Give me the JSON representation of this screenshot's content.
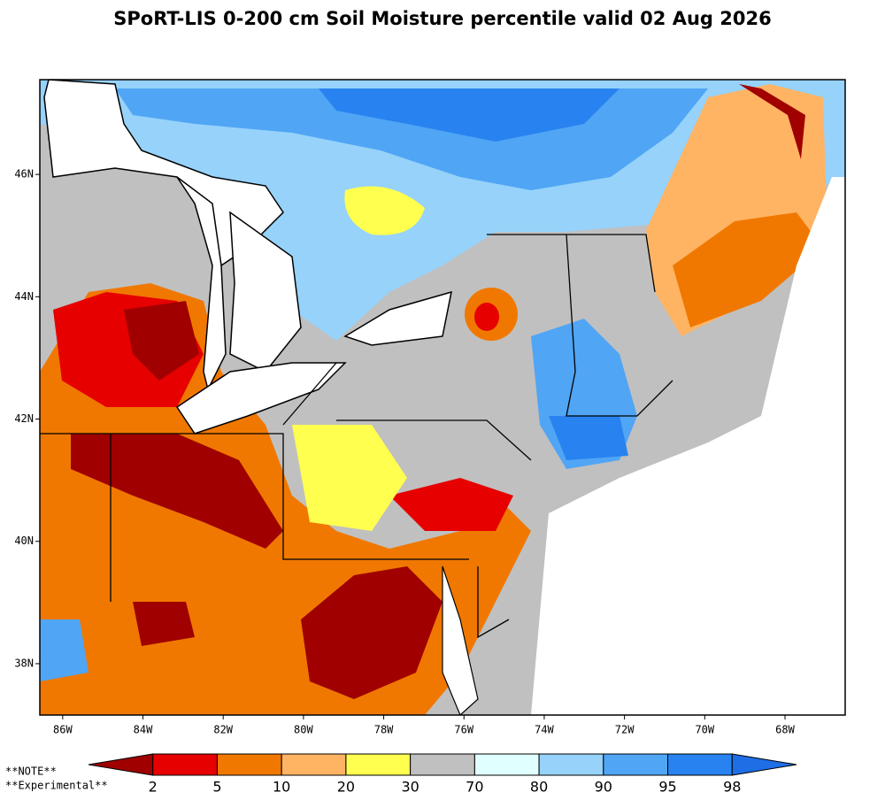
{
  "title": "SPoRT-LIS 0-200 cm Soil Moisture percentile valid 02 Aug 2026",
  "map": {
    "xlim": [
      -86.57,
      -66.5
    ],
    "ylim": [
      37.16,
      47.55
    ],
    "lon_ticks": [
      {
        "value": -86,
        "label": "86W"
      },
      {
        "value": -84,
        "label": "84W"
      },
      {
        "value": -82,
        "label": "82W"
      },
      {
        "value": -80,
        "label": "80W"
      },
      {
        "value": -78,
        "label": "78W"
      },
      {
        "value": -76,
        "label": "76W"
      },
      {
        "value": -74,
        "label": "74W"
      },
      {
        "value": -72,
        "label": "72W"
      },
      {
        "value": -70,
        "label": "70W"
      },
      {
        "value": -68,
        "label": "68W"
      }
    ],
    "lat_ticks": [
      {
        "value": 38,
        "label": "38N"
      },
      {
        "value": 40,
        "label": "40N"
      },
      {
        "value": 42,
        "label": "42N"
      },
      {
        "value": 44,
        "label": "44N"
      },
      {
        "value": 46,
        "label": "46N"
      }
    ]
  },
  "colorbar": {
    "ticks": [
      2,
      5,
      10,
      20,
      30,
      70,
      80,
      90,
      95,
      98
    ],
    "colors": [
      "#a00000",
      "#e60000",
      "#f07800",
      "#ffb464",
      "#ffff50",
      "#c0c0c0",
      "#e0ffff",
      "#96d2fa",
      "#50a5f5",
      "#2882f0",
      "#1e6ee6"
    ]
  },
  "notes": [
    "**NOTE**",
    "**Experimental**"
  ]
}
